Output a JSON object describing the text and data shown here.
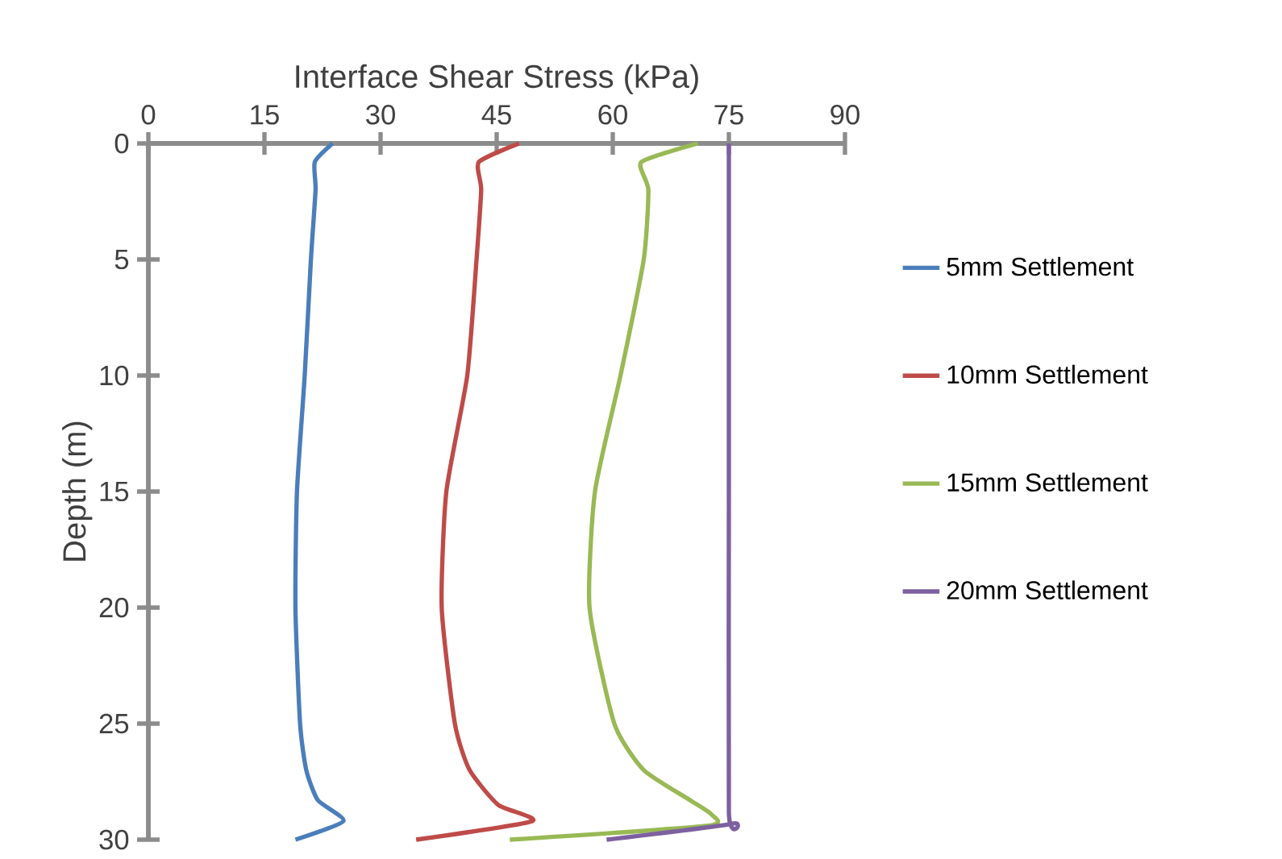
{
  "chart_data": {
    "type": "line",
    "xlabel": "Interface Shear Stress (kPa)",
    "ylabel": "Depth (m)",
    "xlim": [
      0,
      90
    ],
    "xticks": [
      0,
      15,
      30,
      45,
      60,
      75,
      90
    ],
    "ylim": [
      30,
      0
    ],
    "yticks": [
      0,
      5,
      10,
      15,
      20,
      25,
      30
    ],
    "legend": "right",
    "series": [
      {
        "name": "5mm Settlement",
        "color": "#4a7ebb",
        "x": [
          23.8,
          21.5,
          21.6,
          21.0,
          20.2,
          19.2,
          19.0,
          19.6,
          20.4,
          21.9,
          25.2,
          19.0
        ],
        "values": [
          0,
          0.8,
          2,
          5,
          10,
          15,
          20,
          25,
          27,
          28.3,
          29.2,
          30
        ]
      },
      {
        "name": "10mm Settlement",
        "color": "#be4b48",
        "x": [
          47.9,
          42.7,
          43.0,
          42.4,
          41.2,
          38.5,
          37.9,
          39.6,
          41.5,
          45.2,
          49.6,
          34.6
        ],
        "values": [
          0,
          0.8,
          2,
          5,
          10,
          15,
          20,
          25,
          27,
          28.5,
          29.2,
          30
        ]
      },
      {
        "name": "15mm Settlement",
        "color": "#98b954",
        "x": [
          71.0,
          63.7,
          64.6,
          64.0,
          61.0,
          57.7,
          57.0,
          60.2,
          64.0,
          70.0,
          72.7,
          72.3,
          46.7
        ],
        "values": [
          0,
          0.8,
          2,
          5,
          10,
          15,
          20,
          25,
          27,
          28.3,
          28.9,
          29.4,
          30
        ]
      },
      {
        "name": "20mm Settlement",
        "color": "#7d60a0",
        "x": [
          75,
          75,
          75,
          75.6,
          59.2
        ],
        "values": [
          0,
          15,
          28.8,
          29.3,
          30
        ]
      }
    ]
  }
}
